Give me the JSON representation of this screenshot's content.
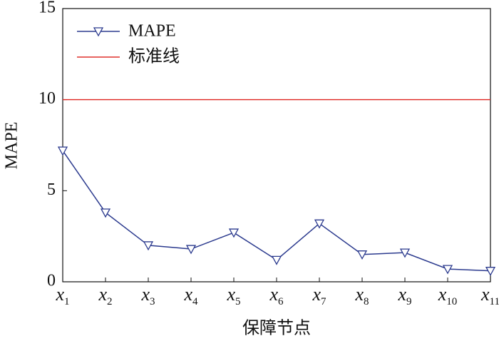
{
  "chart_data": {
    "type": "line",
    "y_label": "MAPE",
    "x_label": "保障节点",
    "categories": [
      "x1",
      "x2",
      "x3",
      "x4",
      "x5",
      "x6",
      "x7",
      "x8",
      "x9",
      "x10",
      "x11"
    ],
    "series": [
      {
        "name": "MAPE",
        "color": "#2b3a8e",
        "values": [
          7.2,
          3.8,
          2.0,
          1.8,
          2.7,
          1.2,
          3.2,
          1.5,
          1.6,
          0.7,
          0.6
        ]
      }
    ],
    "reference_line": {
      "name": "标准线",
      "value": 10,
      "color": "#e0302c"
    },
    "ylim": [
      0,
      15
    ],
    "yticks": [
      0,
      5,
      10,
      15
    ],
    "legend": "upper-left"
  }
}
